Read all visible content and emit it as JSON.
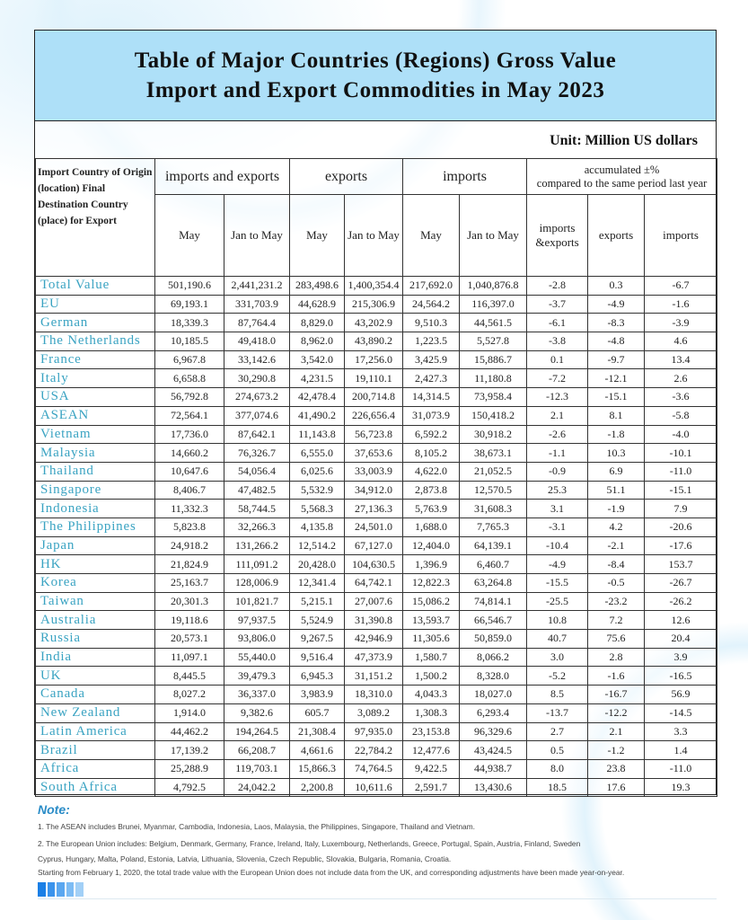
{
  "title": {
    "line1": "Table of Major Countries (Regions) Gross Value",
    "line2": "Import and Export Commodities in May 2023"
  },
  "unit": "Unit: Million US dollars",
  "header": {
    "corner": "Import Country of Origin (location) Final Destination Country (place) for Export",
    "groups": [
      "imports and exports",
      "exports",
      "imports",
      "accumulated ±%",
      "compared to the same period last year"
    ],
    "sub": [
      "May",
      "Jan to May",
      "May",
      "Jan to May",
      "May",
      "Jan to May",
      "imports &exports",
      "exports",
      "imports"
    ]
  },
  "rows": [
    [
      "Total Value",
      "501,190.6",
      "2,441,231.2",
      "283,498.6",
      "1,400,354.4",
      "217,692.0",
      "1,040,876.8",
      "-2.8",
      "0.3",
      "-6.7"
    ],
    [
      "EU",
      "69,193.1",
      "331,703.9",
      "44,628.9",
      "215,306.9",
      "24,564.2",
      "116,397.0",
      "-3.7",
      "-4.9",
      "-1.6"
    ],
    [
      "German",
      "18,339.3",
      "87,764.4",
      "8,829.0",
      "43,202.9",
      "9,510.3",
      "44,561.5",
      "-6.1",
      "-8.3",
      "-3.9"
    ],
    [
      "The Netherlands",
      "10,185.5",
      "49,418.0",
      "8,962.0",
      "43,890.2",
      "1,223.5",
      "5,527.8",
      "-3.8",
      "-4.8",
      "4.6"
    ],
    [
      "France",
      "6,967.8",
      "33,142.6",
      "3,542.0",
      "17,256.0",
      "3,425.9",
      "15,886.7",
      "0.1",
      "-9.7",
      "13.4"
    ],
    [
      "Italy",
      "6,658.8",
      "30,290.8",
      "4,231.5",
      "19,110.1",
      "2,427.3",
      "11,180.8",
      "-7.2",
      "-12.1",
      "2.6"
    ],
    [
      "USA",
      "56,792.8",
      "274,673.2",
      "42,478.4",
      "200,714.8",
      "14,314.5",
      "73,958.4",
      "-12.3",
      "-15.1",
      "-3.6"
    ],
    [
      "ASEAN",
      "72,564.1",
      "377,074.6",
      "41,490.2",
      "226,656.4",
      "31,073.9",
      "150,418.2",
      "2.1",
      "8.1",
      "-5.8"
    ],
    [
      "Vietnam",
      "17,736.0",
      "87,642.1",
      "11,143.8",
      "56,723.8",
      "6,592.2",
      "30,918.2",
      "-2.6",
      "-1.8",
      "-4.0"
    ],
    [
      "Malaysia",
      "14,660.2",
      "76,326.7",
      "6,555.0",
      "37,653.6",
      "8,105.2",
      "38,673.1",
      "-1.1",
      "10.3",
      "-10.1"
    ],
    [
      "Thailand",
      "10,647.6",
      "54,056.4",
      "6,025.6",
      "33,003.9",
      "4,622.0",
      "21,052.5",
      "-0.9",
      "6.9",
      "-11.0"
    ],
    [
      "Singapore",
      "8,406.7",
      "47,482.5",
      "5,532.9",
      "34,912.0",
      "2,873.8",
      "12,570.5",
      "25.3",
      "51.1",
      "-15.1"
    ],
    [
      "Indonesia",
      "11,332.3",
      "58,744.5",
      "5,568.3",
      "27,136.3",
      "5,763.9",
      "31,608.3",
      "3.1",
      "-1.9",
      "7.9"
    ],
    [
      "The Philippines",
      "5,823.8",
      "32,266.3",
      "4,135.8",
      "24,501.0",
      "1,688.0",
      "7,765.3",
      "-3.1",
      "4.2",
      "-20.6"
    ],
    [
      "Japan",
      "24,918.2",
      "131,266.2",
      "12,514.2",
      "67,127.0",
      "12,404.0",
      "64,139.1",
      "-10.4",
      "-2.1",
      "-17.6"
    ],
    [
      "HK",
      "21,824.9",
      "111,091.2",
      "20,428.0",
      "104,630.5",
      "1,396.9",
      "6,460.7",
      "-4.9",
      "-8.4",
      "153.7"
    ],
    [
      "Korea",
      "25,163.7",
      "128,006.9",
      "12,341.4",
      "64,742.1",
      "12,822.3",
      "63,264.8",
      "-15.5",
      "-0.5",
      "-26.7"
    ],
    [
      "Taiwan",
      "20,301.3",
      "101,821.7",
      "5,215.1",
      "27,007.6",
      "15,086.2",
      "74,814.1",
      "-25.5",
      "-23.2",
      "-26.2"
    ],
    [
      "Australia",
      "19,118.6",
      "97,937.5",
      "5,524.9",
      "31,390.8",
      "13,593.7",
      "66,546.7",
      "10.8",
      "7.2",
      "12.6"
    ],
    [
      "Russia",
      "20,573.1",
      "93,806.0",
      "9,267.5",
      "42,946.9",
      "11,305.6",
      "50,859.0",
      "40.7",
      "75.6",
      "20.4"
    ],
    [
      "India",
      "11,097.1",
      "55,440.0",
      "9,516.4",
      "47,373.9",
      "1,580.7",
      "8,066.2",
      "3.0",
      "2.8",
      "3.9"
    ],
    [
      "UK",
      "8,445.5",
      "39,479.3",
      "6,945.3",
      "31,151.2",
      "1,500.2",
      "8,328.0",
      "-5.2",
      "-1.6",
      "-16.5"
    ],
    [
      "Canada",
      "8,027.2",
      "36,337.0",
      "3,983.9",
      "18,310.0",
      "4,043.3",
      "18,027.0",
      "8.5",
      "-16.7",
      "56.9"
    ],
    [
      "New Zealand",
      "1,914.0",
      "9,382.6",
      "605.7",
      "3,089.2",
      "1,308.3",
      "6,293.4",
      "-13.7",
      "-12.2",
      "-14.5"
    ],
    [
      "Latin America",
      "44,462.2",
      "194,264.5",
      "21,308.4",
      "97,935.0",
      "23,153.8",
      "96,329.6",
      "2.7",
      "2.1",
      "3.3"
    ],
    [
      "Brazil",
      "17,139.2",
      "66,208.7",
      "4,661.6",
      "22,784.2",
      "12,477.6",
      "43,424.5",
      "0.5",
      "-1.2",
      "1.4"
    ],
    [
      "Africa",
      "25,288.9",
      "119,703.1",
      "15,866.3",
      "74,764.5",
      "9,422.5",
      "44,938.7",
      "8.0",
      "23.8",
      "-11.0"
    ],
    [
      "South Africa",
      "4,792.5",
      "24,042.2",
      "2,200.8",
      "10,611.6",
      "2,591.7",
      "13,430.6",
      "18.5",
      "17.6",
      "19.3"
    ]
  ],
  "notes": {
    "title": "Note:",
    "lines": [
      "1. The ASEAN includes Brunei, Myanmar, Cambodia, Indonesia, Laos, Malaysia, the Philippines, Singapore, Thailand and Vietnam.",
      "2. The European Union includes: Belgium, Denmark, Germany, France, Ireland, Italy, Luxembourg, Netherlands, Greece, Portugal, Spain, Austria, Finland, Sweden",
      "Cyprus, Hungary, Malta, Poland, Estonia, Latvia, Lithuania, Slovenia, Czech Republic, Slovakia, Bulgaria, Romania, Croatia.",
      "Starting from February 1, 2020, the total trade value with the European Union does not include data from the UK, and corresponding adjustments have been made year-on-year."
    ]
  },
  "colors": {
    "title_band": "#aee0f8",
    "name_text": "#3aa3c2",
    "note_title": "#2a8cc7",
    "blocks": [
      "#1a7fe6",
      "#3a93ec",
      "#5aa7f0",
      "#7dbcf4",
      "#a2d0f7"
    ]
  }
}
